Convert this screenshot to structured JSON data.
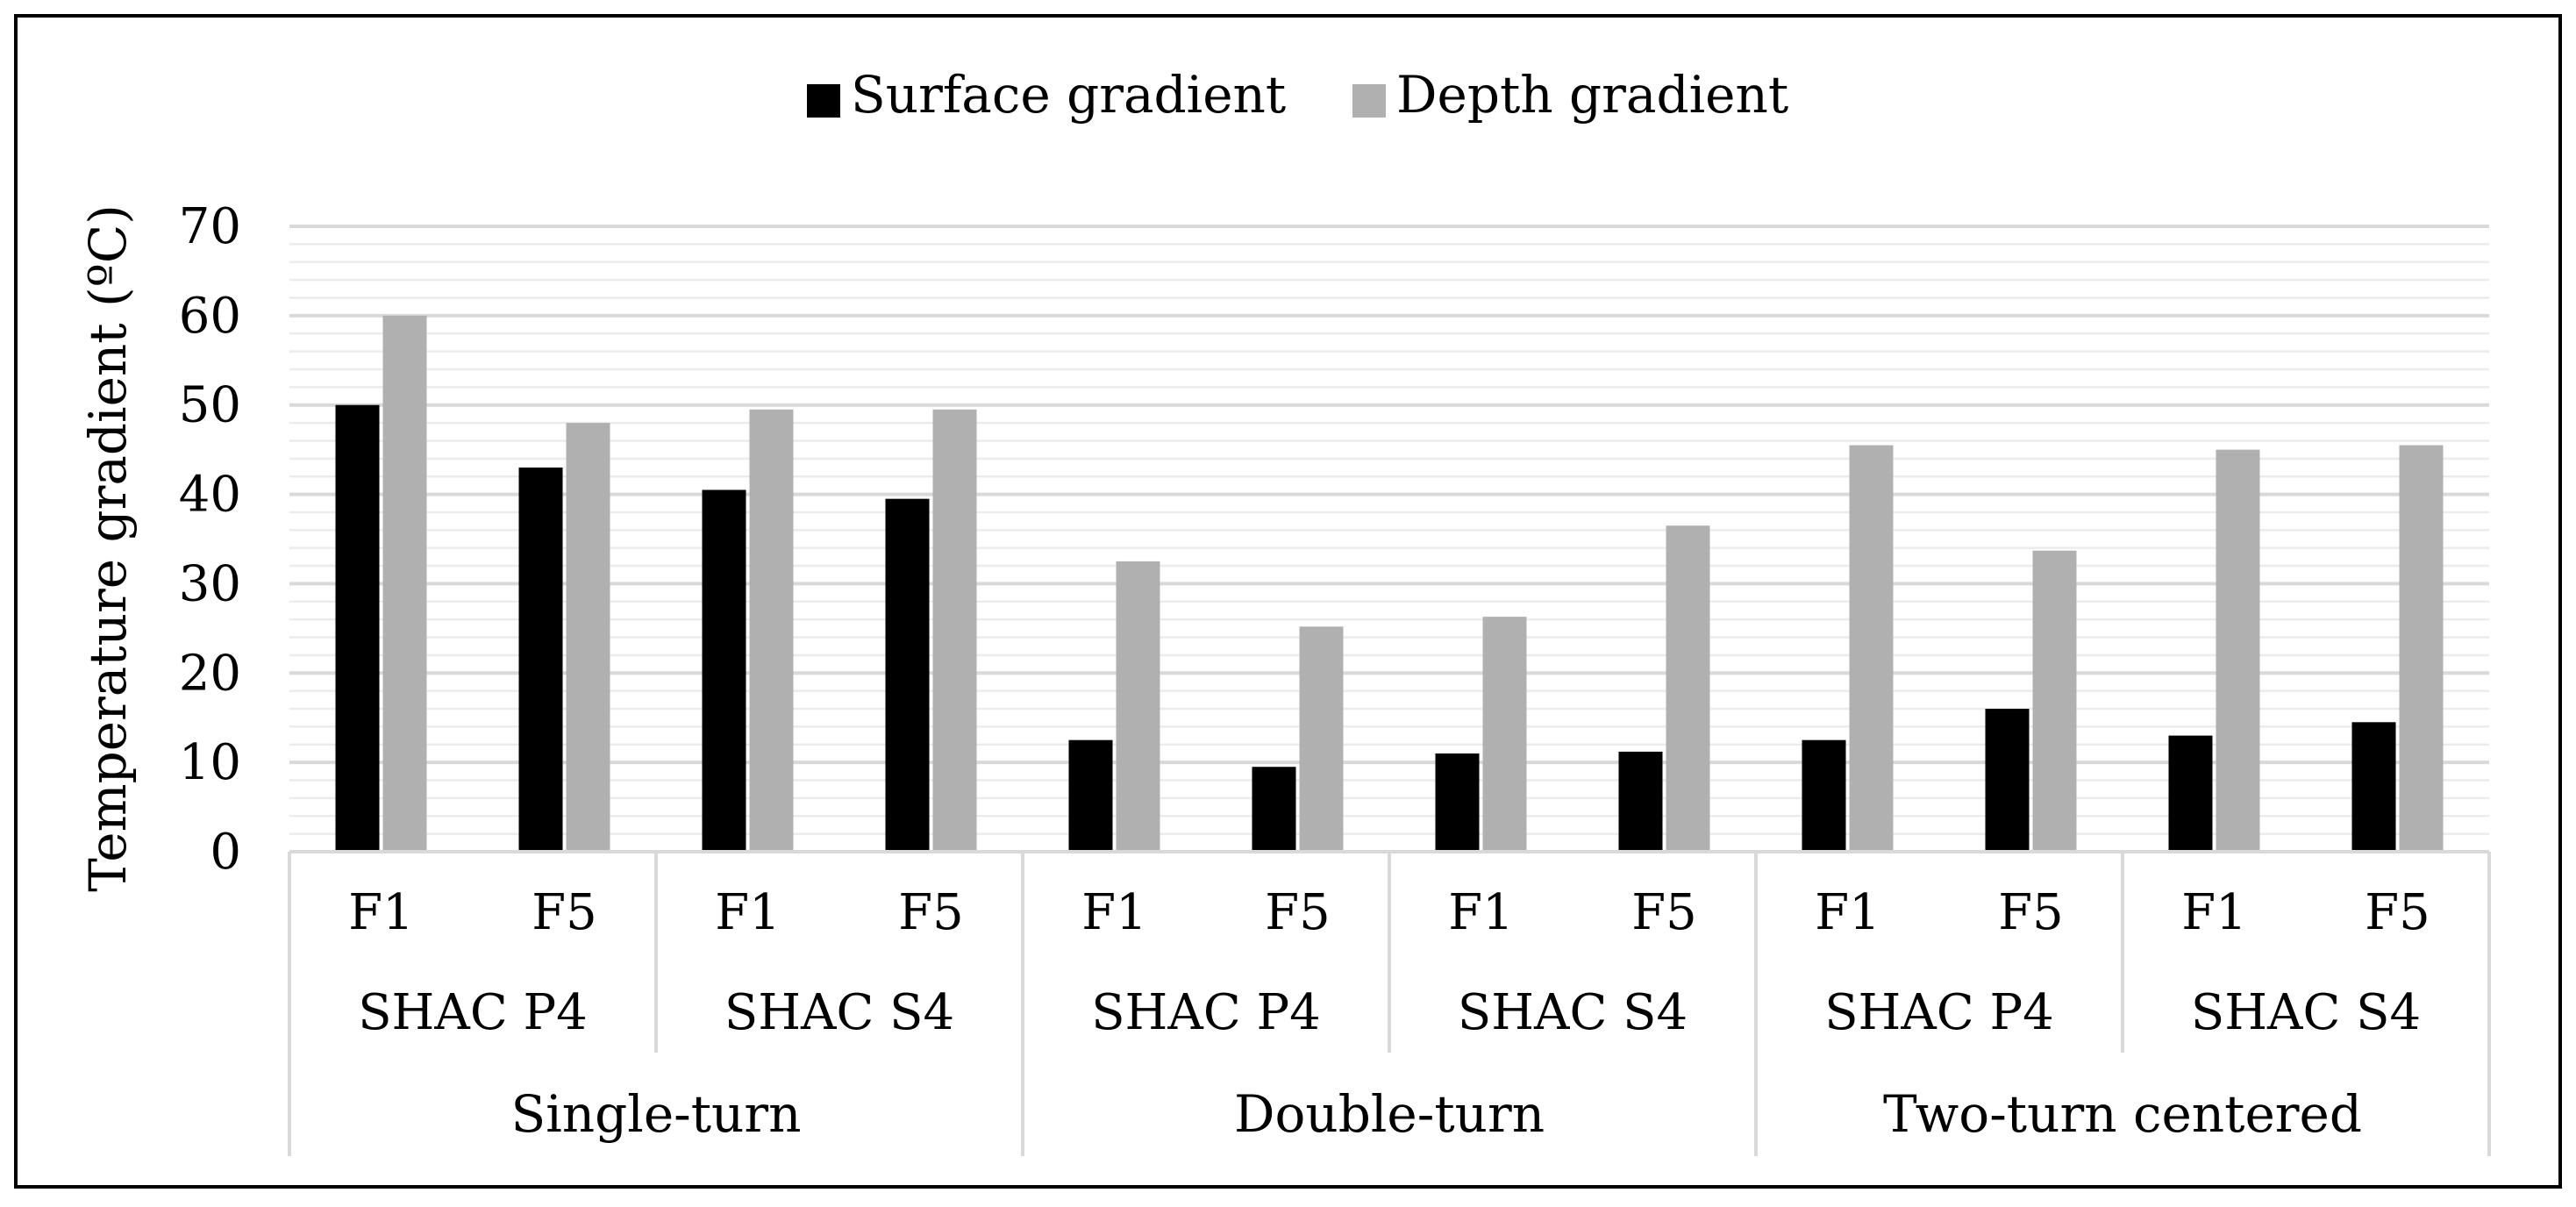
{
  "chart_data": {
    "type": "bar",
    "title": "",
    "ylabel": "Temperature gradient (ºC)",
    "xlabel": "",
    "ylim": [
      0,
      70
    ],
    "yticks": [
      0,
      10,
      20,
      30,
      40,
      50,
      60,
      70
    ],
    "grid": true,
    "legend_position": "top-center",
    "categories": [
      "F1",
      "F5",
      "F1",
      "F5",
      "F1",
      "F5",
      "F1",
      "F5",
      "F1",
      "F5",
      "F1",
      "F5"
    ],
    "category_groups": [
      {
        "label": "SHAC P4",
        "span": 2
      },
      {
        "label": "SHAC S4",
        "span": 2
      },
      {
        "label": "SHAC P4",
        "span": 2
      },
      {
        "label": "SHAC S4",
        "span": 2
      },
      {
        "label": "SHAC P4",
        "span": 2
      },
      {
        "label": "SHAC S4",
        "span": 2
      }
    ],
    "category_supergroups": [
      {
        "label": "Single-turn",
        "span": 4
      },
      {
        "label": "Double-turn",
        "span": 4
      },
      {
        "label": "Two-turn centered",
        "span": 4
      }
    ],
    "series": [
      {
        "name": "Surface gradient",
        "color": "#000000",
        "values": [
          50,
          43,
          40.5,
          39.5,
          12.5,
          9.5,
          11,
          11.2,
          12.5,
          16,
          13,
          14.5
        ]
      },
      {
        "name": "Depth gradient",
        "color": "#b0b0b0",
        "values": [
          60,
          48,
          49.5,
          49.5,
          32.5,
          25.2,
          26.3,
          36.5,
          45.5,
          33.7,
          45,
          45.5
        ]
      }
    ]
  }
}
